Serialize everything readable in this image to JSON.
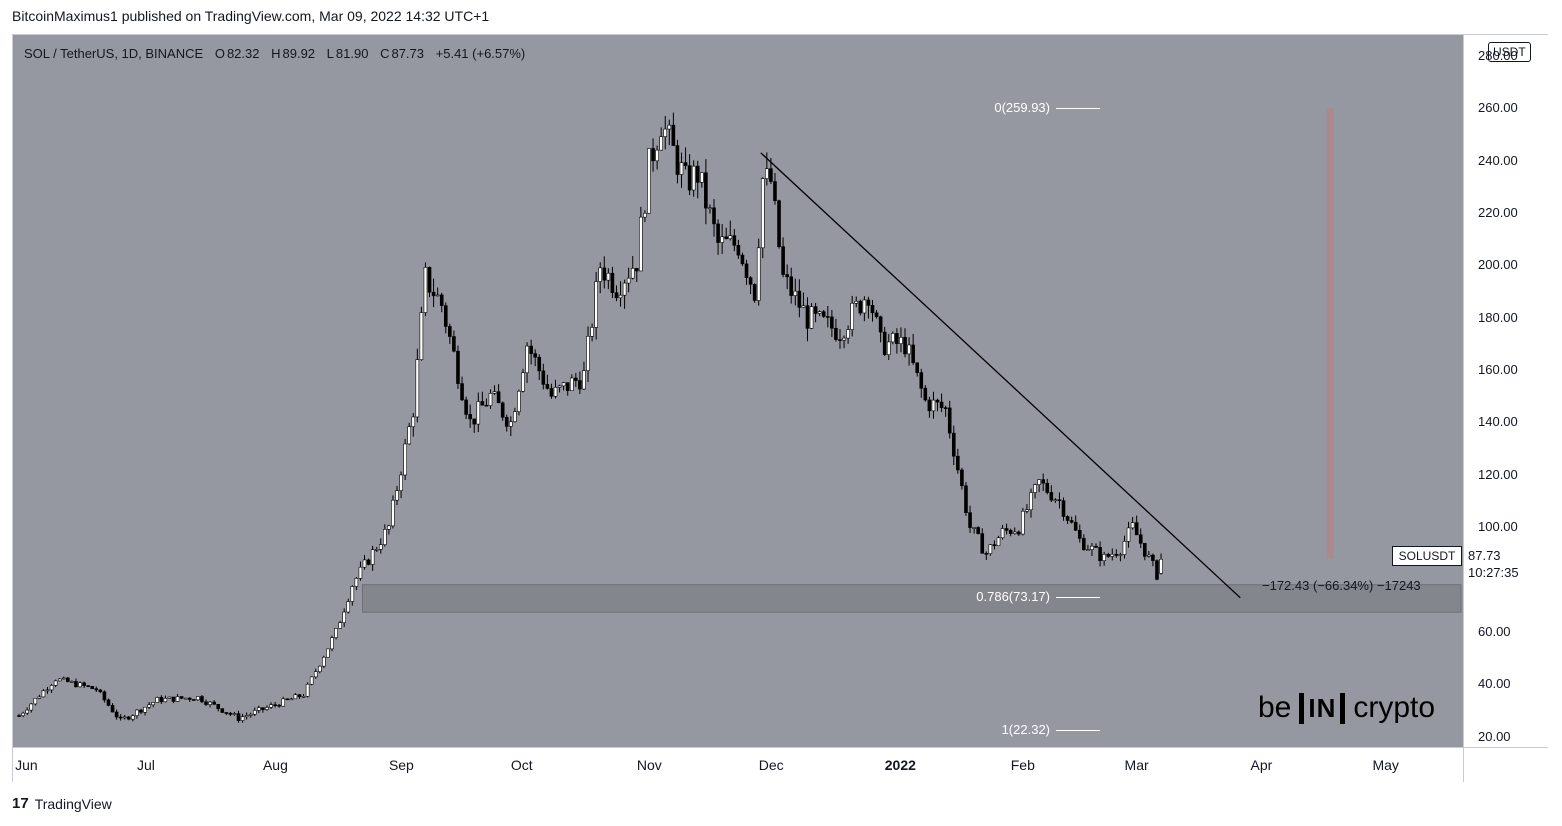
{
  "publisher": "BitcoinMaximus1 published on TradingView.com, Mar 09, 2022 14:32 UTC+1",
  "legend": {
    "symbol": "SOL / TetherUS, 1D, BINANCE",
    "open_label": "O",
    "open": "82.32",
    "high_label": "H",
    "high": "89.92",
    "low_label": "L",
    "low": "81.90",
    "close_label": "C",
    "close": "87.73",
    "change": "+5.41 (+6.57%)"
  },
  "unit_badge": "USDT",
  "colors": {
    "plot_background": "#9598a1",
    "candle": "#000000",
    "resistance_line": "#000000",
    "support_zone": "#7f828a",
    "vertical_measure": "#b0868a",
    "fib_line": "#ffffff"
  },
  "fib_levels": [
    {
      "label": "0(259.93)",
      "price": 259.93
    },
    {
      "label": "0.786(73.17)",
      "price": 73.17
    },
    {
      "label": "1(22.32)",
      "price": 22.32
    }
  ],
  "measure_label": "−172.43 (−66.34%) −17243",
  "symbol_tag": "SOLUSDT",
  "last_price": "87.73",
  "countdown": "10:27:35",
  "brand": {
    "pre": "be",
    "box": "IN",
    "post": "crypto"
  },
  "footer": "TradingView",
  "footer_logo": "17",
  "chart_data": {
    "type": "candlestick",
    "title": "SOL / TetherUS, 1D, BINANCE",
    "xlabel": "",
    "ylabel": "",
    "ylim": [
      16,
      288
    ],
    "y_ticks": [
      "280.00",
      "260.00",
      "240.00",
      "220.00",
      "200.00",
      "180.00",
      "160.00",
      "140.00",
      "120.00",
      "100.00",
      "60.00",
      "40.00",
      "20.00"
    ],
    "x_ticks": [
      {
        "label": "Jun",
        "date": "2021-06-01"
      },
      {
        "label": "Jul",
        "date": "2021-07-01"
      },
      {
        "label": "Aug",
        "date": "2021-08-01"
      },
      {
        "label": "Sep",
        "date": "2021-09-01"
      },
      {
        "label": "Oct",
        "date": "2021-10-01"
      },
      {
        "label": "Nov",
        "date": "2021-11-01"
      },
      {
        "label": "Dec",
        "date": "2021-12-01"
      },
      {
        "label": "2022",
        "date": "2022-01-01",
        "bold": true
      },
      {
        "label": "Feb",
        "date": "2022-02-01"
      },
      {
        "label": "Mar",
        "date": "2022-03-01"
      },
      {
        "label": "Apr",
        "date": "2022-04-01"
      },
      {
        "label": "May",
        "date": "2022-05-01"
      }
    ],
    "close_path": [
      [
        "2021-06-01",
        28
      ],
      [
        "2021-06-10",
        42
      ],
      [
        "2021-06-20",
        38
      ],
      [
        "2021-06-26",
        26
      ],
      [
        "2021-07-05",
        34
      ],
      [
        "2021-07-15",
        35
      ],
      [
        "2021-07-25",
        27
      ],
      [
        "2021-08-01",
        31
      ],
      [
        "2021-08-10",
        36
      ],
      [
        "2021-08-18",
        60
      ],
      [
        "2021-08-22",
        78
      ],
      [
        "2021-08-31",
        100
      ],
      [
        "2021-09-06",
        145
      ],
      [
        "2021-09-09",
        195
      ],
      [
        "2021-09-13",
        185
      ],
      [
        "2021-09-20",
        140
      ],
      [
        "2021-09-25",
        150
      ],
      [
        "2021-09-30",
        140
      ],
      [
        "2021-10-04",
        170
      ],
      [
        "2021-10-10",
        150
      ],
      [
        "2021-10-18",
        158
      ],
      [
        "2021-10-22",
        200
      ],
      [
        "2021-10-26",
        192
      ],
      [
        "2021-10-31",
        202
      ],
      [
        "2021-11-03",
        238
      ],
      [
        "2021-11-06",
        255
      ],
      [
        "2021-11-12",
        232
      ],
      [
        "2021-11-15",
        235
      ],
      [
        "2021-11-20",
        208
      ],
      [
        "2021-11-25",
        208
      ],
      [
        "2021-11-29",
        190
      ],
      [
        "2021-12-01",
        233
      ],
      [
        "2021-12-03",
        232
      ],
      [
        "2021-12-06",
        195
      ],
      [
        "2021-12-12",
        180
      ],
      [
        "2021-12-20",
        175
      ],
      [
        "2021-12-27",
        190
      ],
      [
        "2021-12-30",
        170
      ],
      [
        "2022-01-05",
        170
      ],
      [
        "2022-01-10",
        148
      ],
      [
        "2022-01-15",
        145
      ],
      [
        "2022-01-21",
        100
      ],
      [
        "2022-01-25",
        90
      ],
      [
        "2022-01-29",
        98
      ],
      [
        "2022-02-02",
        100
      ],
      [
        "2022-02-07",
        117
      ],
      [
        "2022-02-12",
        110
      ],
      [
        "2022-02-17",
        95
      ],
      [
        "2022-02-23",
        88
      ],
      [
        "2022-02-27",
        92
      ],
      [
        "2022-03-02",
        100
      ],
      [
        "2022-03-08",
        82
      ],
      [
        "2022-03-09",
        87.73
      ]
    ],
    "annotations": [
      {
        "type": "trendline",
        "from": [
          "2021-12-01",
          243
        ],
        "to": [
          "2022-03-29",
          73
        ]
      },
      {
        "type": "zone",
        "from_date": "2021-08-25",
        "to_date": "2022-05-31",
        "low": 67.5,
        "high": 78
      },
      {
        "type": "vertical_measure",
        "date": "2022-04-20",
        "from": 88,
        "to": 260
      }
    ]
  }
}
